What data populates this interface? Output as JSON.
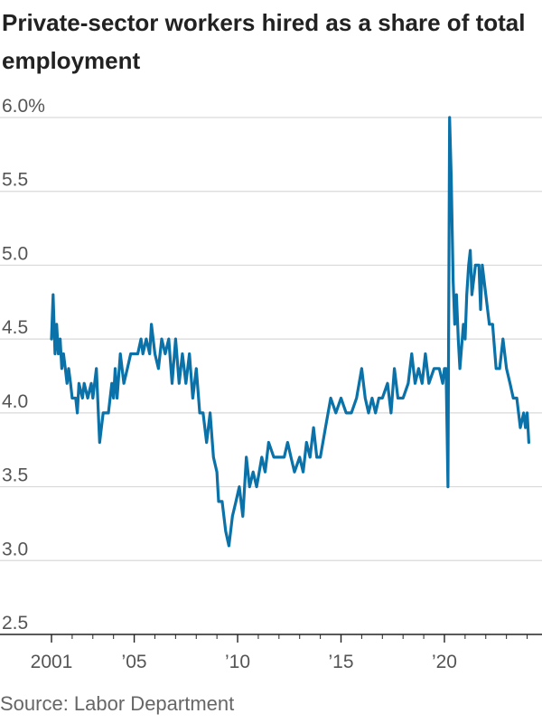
{
  "title": "Private-sector workers hired as a share of total employment",
  "source": "Source: Labor Department",
  "colors": {
    "line": "#0a72a8",
    "grid": "#d9d9d9",
    "axis": "#222222"
  },
  "chart_data": {
    "type": "line",
    "title": "Private-sector workers hired as a share of total employment",
    "xlabel": "",
    "ylabel": "",
    "ylim": [
      2.5,
      6.0
    ],
    "xlim": [
      2001.0,
      2024.5
    ],
    "y_ticks": [
      {
        "value": 6.0,
        "label": "6.0%"
      },
      {
        "value": 5.5,
        "label": "5.5"
      },
      {
        "value": 5.0,
        "label": "5.0"
      },
      {
        "value": 4.5,
        "label": "4.5"
      },
      {
        "value": 4.0,
        "label": "4.0"
      },
      {
        "value": 3.5,
        "label": "3.5"
      },
      {
        "value": 3.0,
        "label": "3.0"
      },
      {
        "value": 2.5,
        "label": "2.5"
      }
    ],
    "x_ticks": [
      {
        "value": 2001,
        "label": "2001"
      },
      {
        "value": 2005,
        "label": "’05"
      },
      {
        "value": 2010,
        "label": "’10"
      },
      {
        "value": 2015,
        "label": "’15"
      },
      {
        "value": 2020,
        "label": "’20"
      }
    ],
    "grid": true,
    "legend": "none",
    "series": [
      {
        "points": [
          [
            2001.0,
            4.5
          ],
          [
            2001.08,
            4.8
          ],
          [
            2001.17,
            4.4
          ],
          [
            2001.25,
            4.6
          ],
          [
            2001.33,
            4.4
          ],
          [
            2001.42,
            4.5
          ],
          [
            2001.5,
            4.3
          ],
          [
            2001.58,
            4.4
          ],
          [
            2001.67,
            4.3
          ],
          [
            2001.75,
            4.2
          ],
          [
            2001.83,
            4.3
          ],
          [
            2001.92,
            4.2
          ],
          [
            2002.0,
            4.1
          ],
          [
            2002.17,
            4.1
          ],
          [
            2002.25,
            4.0
          ],
          [
            2002.33,
            4.2
          ],
          [
            2002.5,
            4.1
          ],
          [
            2002.58,
            4.2
          ],
          [
            2002.75,
            4.1
          ],
          [
            2002.92,
            4.2
          ],
          [
            2003.0,
            4.1
          ],
          [
            2003.17,
            4.3
          ],
          [
            2003.33,
            3.8
          ],
          [
            2003.5,
            4.0
          ],
          [
            2003.75,
            4.0
          ],
          [
            2003.92,
            4.2
          ],
          [
            2004.0,
            4.1
          ],
          [
            2004.08,
            4.3
          ],
          [
            2004.17,
            4.1
          ],
          [
            2004.33,
            4.4
          ],
          [
            2004.5,
            4.2
          ],
          [
            2004.67,
            4.3
          ],
          [
            2004.83,
            4.4
          ],
          [
            2005.0,
            4.4
          ],
          [
            2005.17,
            4.4
          ],
          [
            2005.33,
            4.5
          ],
          [
            2005.42,
            4.4
          ],
          [
            2005.58,
            4.5
          ],
          [
            2005.75,
            4.4
          ],
          [
            2005.83,
            4.6
          ],
          [
            2006.0,
            4.4
          ],
          [
            2006.17,
            4.3
          ],
          [
            2006.33,
            4.5
          ],
          [
            2006.5,
            4.4
          ],
          [
            2006.67,
            4.5
          ],
          [
            2006.83,
            4.2
          ],
          [
            2007.0,
            4.5
          ],
          [
            2007.17,
            4.2
          ],
          [
            2007.33,
            4.4
          ],
          [
            2007.5,
            4.2
          ],
          [
            2007.67,
            4.4
          ],
          [
            2007.83,
            4.1
          ],
          [
            2008.0,
            4.3
          ],
          [
            2008.17,
            4.0
          ],
          [
            2008.33,
            4.0
          ],
          [
            2008.5,
            3.8
          ],
          [
            2008.67,
            4.0
          ],
          [
            2008.83,
            3.7
          ],
          [
            2009.0,
            3.6
          ],
          [
            2009.08,
            3.4
          ],
          [
            2009.25,
            3.4
          ],
          [
            2009.42,
            3.2
          ],
          [
            2009.58,
            3.1
          ],
          [
            2009.75,
            3.3
          ],
          [
            2009.92,
            3.4
          ],
          [
            2010.08,
            3.5
          ],
          [
            2010.25,
            3.3
          ],
          [
            2010.42,
            3.7
          ],
          [
            2010.58,
            3.5
          ],
          [
            2010.75,
            3.6
          ],
          [
            2010.92,
            3.5
          ],
          [
            2011.17,
            3.7
          ],
          [
            2011.33,
            3.6
          ],
          [
            2011.5,
            3.8
          ],
          [
            2011.75,
            3.7
          ],
          [
            2012.0,
            3.7
          ],
          [
            2012.25,
            3.7
          ],
          [
            2012.42,
            3.8
          ],
          [
            2012.58,
            3.7
          ],
          [
            2012.75,
            3.6
          ],
          [
            2013.0,
            3.7
          ],
          [
            2013.17,
            3.6
          ],
          [
            2013.33,
            3.8
          ],
          [
            2013.5,
            3.7
          ],
          [
            2013.67,
            3.9
          ],
          [
            2013.83,
            3.7
          ],
          [
            2014.0,
            3.7
          ],
          [
            2014.25,
            3.9
          ],
          [
            2014.5,
            4.1
          ],
          [
            2014.75,
            4.0
          ],
          [
            2015.0,
            4.1
          ],
          [
            2015.25,
            4.0
          ],
          [
            2015.5,
            4.0
          ],
          [
            2015.75,
            4.1
          ],
          [
            2016.0,
            4.3
          ],
          [
            2016.17,
            4.1
          ],
          [
            2016.33,
            4.0
          ],
          [
            2016.5,
            4.1
          ],
          [
            2016.67,
            4.0
          ],
          [
            2016.83,
            4.1
          ],
          [
            2017.0,
            4.1
          ],
          [
            2017.25,
            4.2
          ],
          [
            2017.42,
            4.0
          ],
          [
            2017.58,
            4.3
          ],
          [
            2017.75,
            4.1
          ],
          [
            2018.0,
            4.1
          ],
          [
            2018.25,
            4.2
          ],
          [
            2018.42,
            4.4
          ],
          [
            2018.58,
            4.2
          ],
          [
            2018.75,
            4.3
          ],
          [
            2018.92,
            4.2
          ],
          [
            2019.08,
            4.4
          ],
          [
            2019.25,
            4.2
          ],
          [
            2019.5,
            4.3
          ],
          [
            2019.75,
            4.3
          ],
          [
            2019.92,
            4.2
          ],
          [
            2020.0,
            4.3
          ],
          [
            2020.08,
            4.3
          ],
          [
            2020.17,
            3.5
          ],
          [
            2020.25,
            6.0
          ],
          [
            2020.33,
            5.6
          ],
          [
            2020.42,
            4.9
          ],
          [
            2020.5,
            4.6
          ],
          [
            2020.58,
            4.8
          ],
          [
            2020.67,
            4.5
          ],
          [
            2020.75,
            4.3
          ],
          [
            2020.92,
            4.6
          ],
          [
            2021.0,
            4.5
          ],
          [
            2021.08,
            4.8
          ],
          [
            2021.17,
            5.0
          ],
          [
            2021.25,
            5.1
          ],
          [
            2021.33,
            4.8
          ],
          [
            2021.5,
            5.0
          ],
          [
            2021.67,
            5.0
          ],
          [
            2021.75,
            4.7
          ],
          [
            2021.83,
            5.0
          ],
          [
            2022.0,
            4.8
          ],
          [
            2022.17,
            4.6
          ],
          [
            2022.33,
            4.6
          ],
          [
            2022.5,
            4.3
          ],
          [
            2022.67,
            4.3
          ],
          [
            2022.83,
            4.5
          ],
          [
            2023.0,
            4.3
          ],
          [
            2023.17,
            4.2
          ],
          [
            2023.33,
            4.1
          ],
          [
            2023.5,
            4.1
          ],
          [
            2023.67,
            3.9
          ],
          [
            2023.83,
            4.0
          ],
          [
            2023.92,
            3.9
          ],
          [
            2024.0,
            4.0
          ],
          [
            2024.08,
            3.8
          ]
        ]
      }
    ],
    "annotations": []
  }
}
